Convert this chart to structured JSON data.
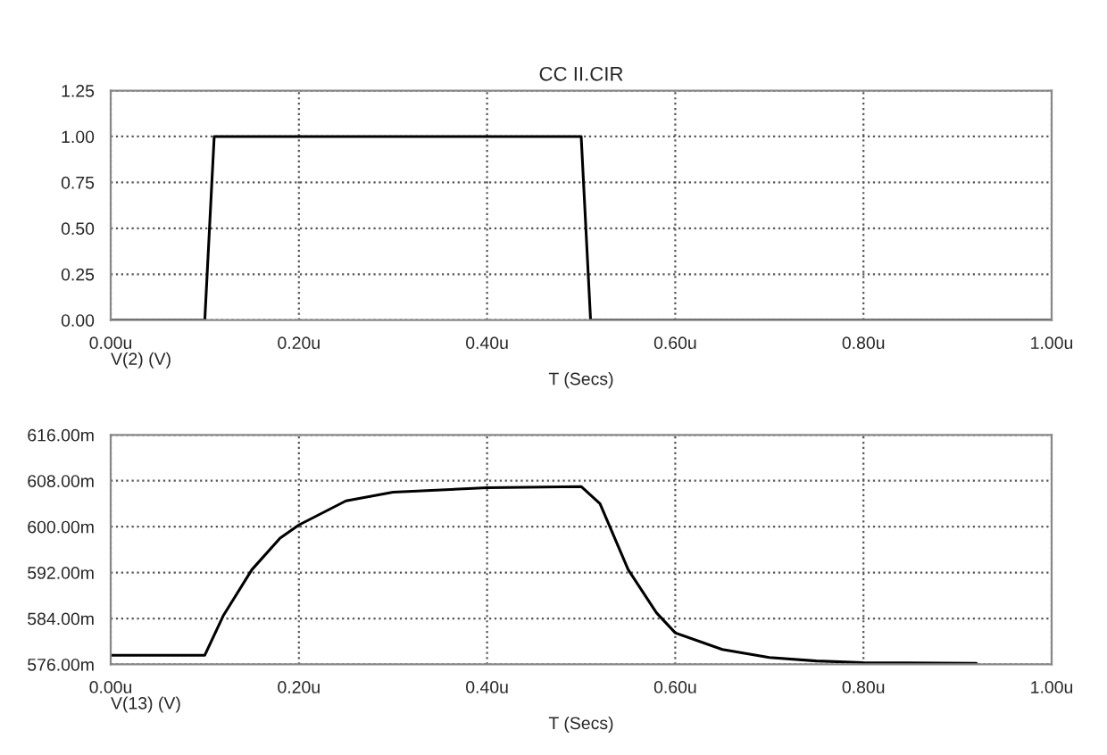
{
  "chart_data": [
    {
      "type": "line",
      "title": "CC II.CIR",
      "xlabel": "T (Secs)",
      "annotations": [
        "V(2) (V)"
      ],
      "series": [
        {
          "color": "#000000",
          "x": [
            0,
            0.1,
            0.11,
            0.5,
            0.51,
            1.0
          ],
          "values": [
            0,
            0,
            1.0,
            1.0,
            0,
            0
          ]
        }
      ],
      "xlim": [
        0,
        1.0
      ],
      "ylim": [
        0,
        1.25
      ],
      "xticks": [
        {
          "value": 0,
          "label": "0.00u"
        },
        {
          "value": 0.2,
          "label": "0.20u"
        },
        {
          "value": 0.4,
          "label": "0.40u"
        },
        {
          "value": 0.6,
          "label": "0.60u"
        },
        {
          "value": 0.8,
          "label": "0.80u"
        },
        {
          "value": 1.0,
          "label": "1.00u"
        }
      ],
      "yticks": [
        {
          "value": 0,
          "label": "0.00"
        },
        {
          "value": 0.25,
          "label": "0.25"
        },
        {
          "value": 0.5,
          "label": "0.50"
        },
        {
          "value": 0.75,
          "label": "0.75"
        },
        {
          "value": 1.0,
          "label": "1.00"
        },
        {
          "value": 1.25,
          "label": "1.25"
        }
      ],
      "grid": true,
      "line_style": "solid"
    },
    {
      "type": "line",
      "xlabel": "T (Secs)",
      "annotations": [
        "V(13) (V)"
      ],
      "series": [
        {
          "color": "#000000",
          "x": [
            0,
            0.1,
            0.12,
            0.15,
            0.18,
            0.2,
            0.25,
            0.3,
            0.4,
            0.5,
            0.52,
            0.55,
            0.58,
            0.6,
            0.65,
            0.7,
            0.75,
            0.8,
            0.92
          ],
          "values": [
            577.6,
            577.6,
            584.6,
            592.5,
            598.0,
            600.3,
            604.5,
            606.0,
            606.8,
            607.0,
            604.0,
            592.5,
            585.0,
            581.5,
            578.6,
            577.2,
            576.6,
            576.3,
            576.2
          ]
        }
      ],
      "xlim": [
        0,
        1.0
      ],
      "ylim": [
        576,
        616
      ],
      "xticks": [
        {
          "value": 0,
          "label": "0.00u"
        },
        {
          "value": 0.2,
          "label": "0.20u"
        },
        {
          "value": 0.4,
          "label": "0.40u"
        },
        {
          "value": 0.6,
          "label": "0.60u"
        },
        {
          "value": 0.8,
          "label": "0.80u"
        },
        {
          "value": 1.0,
          "label": "1.00u"
        }
      ],
      "yticks": [
        {
          "value": 576,
          "label": "576.00m"
        },
        {
          "value": 584,
          "label": "584.00m"
        },
        {
          "value": 592,
          "label": "592.00m"
        },
        {
          "value": 600,
          "label": "600.00m"
        },
        {
          "value": 608,
          "label": "608.00m"
        },
        {
          "value": 616,
          "label": "616.00m"
        }
      ],
      "grid": true,
      "line_style": "solid"
    }
  ]
}
